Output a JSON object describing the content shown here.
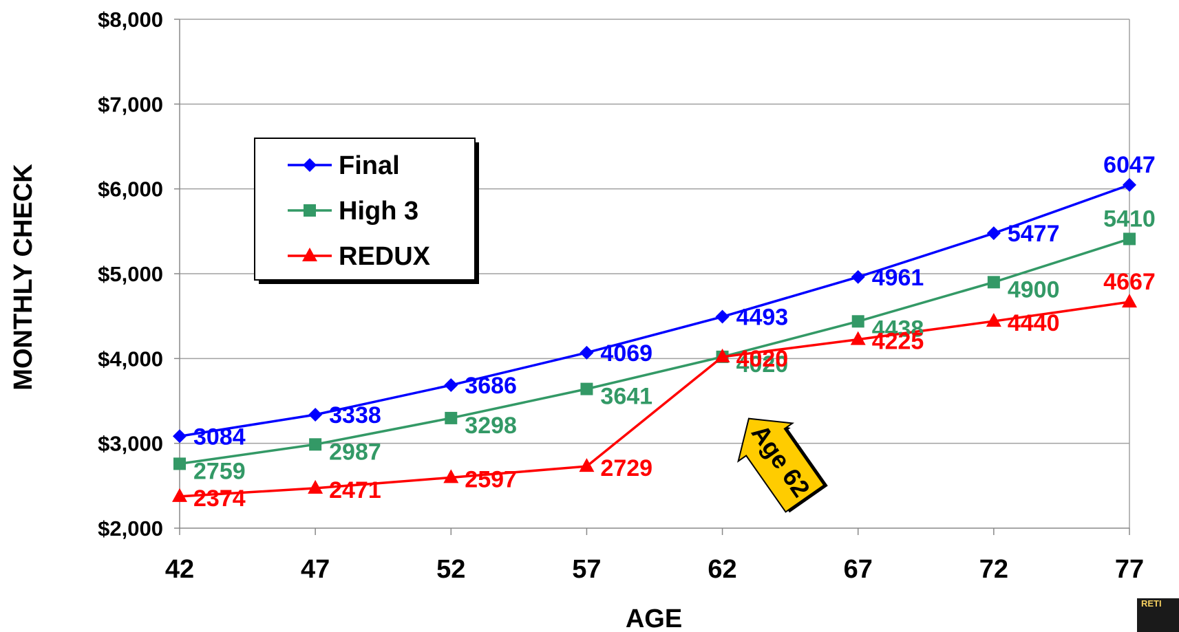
{
  "chart_data": {
    "type": "line",
    "xlabel": "AGE",
    "ylabel": "MONTHLY CHECK",
    "x": [
      42,
      47,
      52,
      57,
      62,
      67,
      72,
      77
    ],
    "ylim": [
      2000,
      8000
    ],
    "yticks": [
      2000,
      3000,
      4000,
      5000,
      6000,
      7000,
      8000
    ],
    "ytick_labels": [
      "$2,000",
      "$3,000",
      "$4,000",
      "$5,000",
      "$6,000",
      "$7,000",
      "$8,000"
    ],
    "grid": "horizontal",
    "legend_position": "upper-left",
    "series": [
      {
        "name": "Final",
        "color": "#0000ff",
        "marker": "diamond",
        "values": [
          3084,
          3338,
          3686,
          4069,
          4493,
          4961,
          5477,
          6047
        ]
      },
      {
        "name": "High 3",
        "color": "#339966",
        "marker": "square",
        "values": [
          2759,
          2987,
          3298,
          3641,
          4020,
          4438,
          4900,
          5410
        ]
      },
      {
        "name": "REDUX",
        "color": "#ff0000",
        "marker": "triangle",
        "values": [
          2374,
          2471,
          2597,
          2729,
          4020,
          4225,
          4440,
          4667
        ]
      }
    ],
    "annotations": [
      {
        "text": "Age 62",
        "x": 62,
        "fill": "#ffcc00"
      }
    ]
  },
  "logo": {
    "text": "RETI"
  }
}
